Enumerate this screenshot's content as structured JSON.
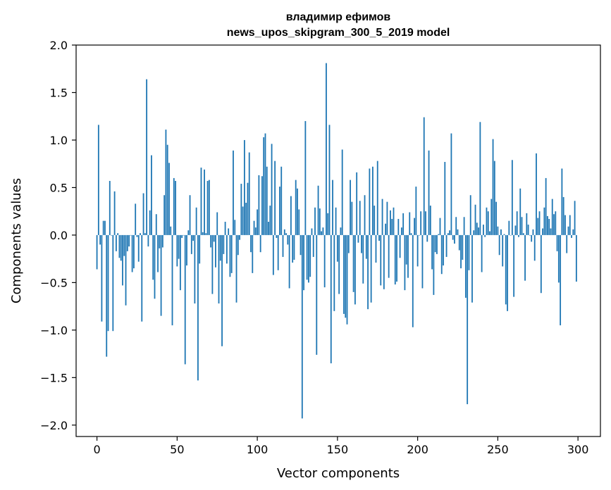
{
  "chart_data": {
    "type": "bar",
    "title_line1": "владимир ефимов",
    "title_line2": "news_upos_skipgram_300_5_2019 model",
    "xlabel": "Vector components",
    "ylabel": "Components values",
    "xlim": [
      -13,
      314
    ],
    "ylim": [
      -2.12,
      2.0
    ],
    "x_ticks": [
      0,
      50,
      100,
      150,
      200,
      250,
      300
    ],
    "x_tick_labels": [
      "0",
      "50",
      "100",
      "150",
      "200",
      "250",
      "300"
    ],
    "y_ticks": [
      2.0,
      1.5,
      1.0,
      0.5,
      0.0,
      -0.5,
      -1.0,
      -1.5,
      -2.0
    ],
    "y_tick_labels": [
      "2.0",
      "1.5",
      "1.0",
      "0.5",
      "0.0",
      "−0.5",
      "−1.0",
      "−1.5",
      "−2.0"
    ],
    "bar_color": "#1f77b4",
    "grid": false,
    "categories_start": 0,
    "values": [
      -0.36,
      1.16,
      -0.1,
      -0.91,
      0.15,
      0.15,
      -1.28,
      -1.01,
      0.57,
      0.0,
      -1.01,
      0.46,
      -0.17,
      0.02,
      -0.24,
      -0.27,
      -0.53,
      -0.22,
      -0.74,
      -0.17,
      -0.12,
      0.0,
      -0.39,
      -0.35,
      0.33,
      -0.02,
      -0.28,
      0.02,
      -0.91,
      0.44,
      0.02,
      1.64,
      -0.12,
      0.26,
      0.84,
      -0.47,
      -0.67,
      0.22,
      -0.39,
      -0.14,
      -0.85,
      -0.13,
      0.42,
      1.11,
      0.95,
      0.76,
      0.09,
      -0.95,
      0.6,
      0.57,
      -0.33,
      -0.25,
      -0.58,
      -0.03,
      0.0,
      -1.36,
      -0.32,
      0.05,
      0.42,
      -0.2,
      -0.06,
      -0.72,
      0.29,
      -1.53,
      -0.3,
      0.71,
      0.03,
      0.69,
      0.02,
      0.57,
      0.58,
      -0.13,
      -0.62,
      -0.07,
      -0.34,
      0.24,
      -0.72,
      -0.27,
      -1.17,
      -0.2,
      0.14,
      -0.3,
      0.07,
      -0.44,
      -0.4,
      0.89,
      0.16,
      -0.71,
      -0.21,
      -0.05,
      0.54,
      0.3,
      1.0,
      0.34,
      0.55,
      0.87,
      -0.18,
      -0.4,
      0.15,
      0.08,
      0.27,
      0.63,
      -0.18,
      0.62,
      1.03,
      1.07,
      0.72,
      0.14,
      0.31,
      0.96,
      -0.42,
      0.78,
      -0.03,
      -0.37,
      0.51,
      0.72,
      -0.23,
      0.06,
      0.02,
      -0.1,
      -0.56,
      0.41,
      -0.29,
      -0.26,
      0.58,
      0.49,
      0.27,
      -0.21,
      -1.93,
      -0.58,
      1.2,
      -0.47,
      -0.5,
      -0.44,
      0.07,
      -0.23,
      0.29,
      -1.26,
      0.52,
      0.28,
      0.04,
      0.08,
      -0.55,
      1.81,
      0.23,
      1.16,
      -1.35,
      0.58,
      -0.8,
      0.29,
      -0.28,
      -0.62,
      0.08,
      0.9,
      -0.83,
      -0.87,
      -0.94,
      -0.19,
      0.58,
      0.35,
      -0.6,
      -0.73,
      0.66,
      -0.08,
      0.36,
      -0.19,
      -0.51,
      0.42,
      -0.25,
      -0.78,
      0.7,
      -0.71,
      0.72,
      0.31,
      -0.29,
      0.78,
      -0.06,
      -0.53,
      0.38,
      -0.57,
      0.12,
      0.35,
      -0.45,
      0.26,
      0.17,
      0.29,
      -0.52,
      -0.49,
      0.17,
      -0.24,
      0.08,
      0.23,
      -0.58,
      -0.31,
      -0.45,
      0.24,
      0.02,
      -0.97,
      0.18,
      0.51,
      -0.33,
      0.0,
      0.25,
      -0.56,
      1.24,
      0.25,
      -0.07,
      0.89,
      0.31,
      -0.36,
      -0.63,
      -0.18,
      -0.2,
      0.01,
      0.18,
      -0.41,
      -0.32,
      0.77,
      -0.23,
      0.02,
      0.05,
      1.07,
      -0.05,
      -0.09,
      0.19,
      0.06,
      -0.16,
      -0.35,
      -0.26,
      0.19,
      -0.66,
      -1.78,
      -0.37,
      0.42,
      -0.71,
      0.05,
      0.32,
      0.13,
      0.08,
      1.19,
      -0.39,
      0.11,
      -0.02,
      0.29,
      0.25,
      0.04,
      0.38,
      1.01,
      0.78,
      0.35,
      0.09,
      -0.21,
      0.06,
      -0.33,
      0.01,
      -0.73,
      -0.8,
      0.15,
      0.0,
      0.79,
      -0.65,
      0.1,
      0.25,
      -0.02,
      0.49,
      0.19,
      0.02,
      -0.48,
      0.23,
      0.11,
      0.0,
      -0.07,
      0.06,
      -0.27,
      0.86,
      0.18,
      0.25,
      -0.61,
      0.07,
      0.29,
      0.6,
      0.2,
      0.17,
      0.07,
      0.38,
      0.22,
      0.25,
      -0.17,
      -0.5,
      -0.95,
      0.7,
      0.4,
      0.21,
      -0.19,
      0.09,
      0.21,
      -0.03,
      0.06,
      0.36,
      -0.49
    ]
  }
}
